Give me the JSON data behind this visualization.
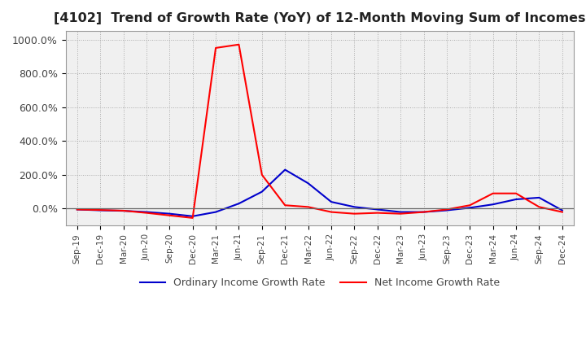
{
  "title": "[4102]  Trend of Growth Rate (YoY) of 12-Month Moving Sum of Incomes",
  "title_fontsize": 11.5,
  "ylim": [
    -100,
    1050
  ],
  "yticks": [
    0,
    200,
    400,
    600,
    800,
    1000
  ],
  "background_color": "#ffffff",
  "plot_bg_color": "#f0f0f0",
  "grid_color": "#aaaaaa",
  "ordinary_color": "#0000cc",
  "net_color": "#ff0000",
  "legend_ordinary": "Ordinary Income Growth Rate",
  "legend_net": "Net Income Growth Rate",
  "x_labels": [
    "Sep-19",
    "Dec-19",
    "Mar-20",
    "Jun-20",
    "Sep-20",
    "Dec-20",
    "Mar-21",
    "Jun-21",
    "Sep-21",
    "Dec-21",
    "Mar-22",
    "Jun-22",
    "Sep-22",
    "Dec-22",
    "Mar-23",
    "Jun-23",
    "Sep-23",
    "Dec-23",
    "Mar-24",
    "Jun-24",
    "Sep-24",
    "Dec-24"
  ],
  "ordinary_y": [
    -5,
    -10,
    -13,
    -20,
    -30,
    -45,
    -20,
    30,
    100,
    230,
    150,
    40,
    10,
    -5,
    -20,
    -20,
    -10,
    5,
    25,
    55,
    65,
    -10
  ],
  "net_y": [
    -5,
    -8,
    -12,
    -25,
    -40,
    -55,
    950,
    970,
    200,
    20,
    10,
    -20,
    -30,
    -25,
    -30,
    -20,
    -5,
    20,
    90,
    90,
    10,
    -20
  ]
}
